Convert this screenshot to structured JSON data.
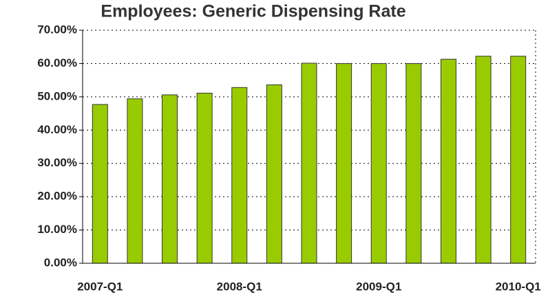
{
  "chart_data": {
    "type": "bar",
    "title": "Employees: Generic Dispensing Rate",
    "categories": [
      "2007-Q1",
      null,
      null,
      null,
      "2008-Q1",
      null,
      null,
      null,
      "2009-Q1",
      null,
      null,
      null,
      "2010-Q1"
    ],
    "values": [
      47.7,
      49.4,
      50.6,
      51.1,
      52.8,
      53.6,
      60.1,
      60.0,
      60.0,
      60.0,
      61.3,
      62.2,
      62.2
    ],
    "color": "#99cc00",
    "ylim": [
      0,
      70
    ],
    "yticks": [
      {
        "value": 0,
        "label": "0.00%"
      },
      {
        "value": 10,
        "label": "10.00%"
      },
      {
        "value": 20,
        "label": "20.00%"
      },
      {
        "value": 30,
        "label": "30.00%"
      },
      {
        "value": 40,
        "label": "40.00%"
      },
      {
        "value": 50,
        "label": "50.00%"
      },
      {
        "value": 60,
        "label": "60.00%"
      },
      {
        "value": 70,
        "label": "70.00%"
      }
    ],
    "grid": true
  }
}
